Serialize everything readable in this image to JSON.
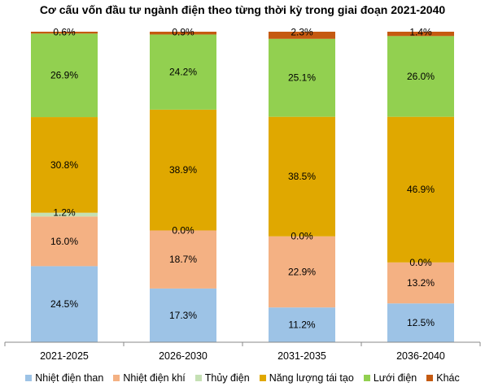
{
  "chart_data": {
    "type": "bar",
    "stacked": true,
    "title": "Cơ cấu vốn đầu tư ngành điện theo từng thời kỳ trong giai đoạn 2021-2040",
    "categories": [
      "2021-2025",
      "2026-2030",
      "2031-2035",
      "2036-2040"
    ],
    "series": [
      {
        "name": "Nhiệt điện than",
        "color": "#9DC3E6",
        "values": [
          24.5,
          17.3,
          11.2,
          12.5
        ],
        "labels": [
          "24.5%",
          "17.3%",
          "11.2%",
          "12.5%"
        ]
      },
      {
        "name": "Nhiệt điện khí",
        "color": "#F4B183",
        "values": [
          16.0,
          18.7,
          22.9,
          13.2
        ],
        "labels": [
          "16.0%",
          "18.7%",
          "22.9%",
          "13.2%"
        ]
      },
      {
        "name": "Thủy điện",
        "color": "#C5E0B4",
        "values": [
          1.2,
          0.0,
          0.0,
          0.0
        ],
        "labels": [
          "1.2%",
          "0.0%",
          "0.0%",
          "0.0%"
        ]
      },
      {
        "name": "Năng lượng tái tạo",
        "color": "#E0A800",
        "values": [
          30.8,
          38.9,
          38.5,
          46.9
        ],
        "labels": [
          "30.8%",
          "38.9%",
          "38.5%",
          "46.9%"
        ]
      },
      {
        "name": "Lưới điện",
        "color": "#92D050",
        "values": [
          26.9,
          24.2,
          25.1,
          26.0
        ],
        "labels": [
          "26.9%",
          "24.2%",
          "25.1%",
          "26.0%"
        ]
      },
      {
        "name": "Khác",
        "color": "#C55A11",
        "values": [
          0.6,
          0.9,
          2.3,
          1.4
        ],
        "labels": [
          "0.6%",
          "0.9%",
          "2.3%",
          "1.4%"
        ]
      }
    ],
    "ylim": [
      0,
      100
    ],
    "grid": false,
    "legend_position": "bottom"
  }
}
